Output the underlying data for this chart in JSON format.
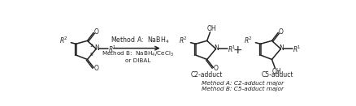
{
  "bg_color": "#ffffff",
  "fig_width": 4.38,
  "fig_height": 1.31,
  "dpi": 100,
  "line_color": "#222222",
  "line_width": 1.1,
  "text_color": "#222222",
  "font_size": 6.0,
  "font_size_sub": 5.5,
  "method_line1": "Method A:  NaBH$_4$",
  "method_line2": "Method B:  NaBH$_4$/CeCl$_3$",
  "method_line3": "or DIBAL",
  "c2_label": "C2-adduct",
  "c5_label": "C5-adduct",
  "bottom1": "Method A: C2-adduct major",
  "bottom2": "Method B: C5-adduct major"
}
